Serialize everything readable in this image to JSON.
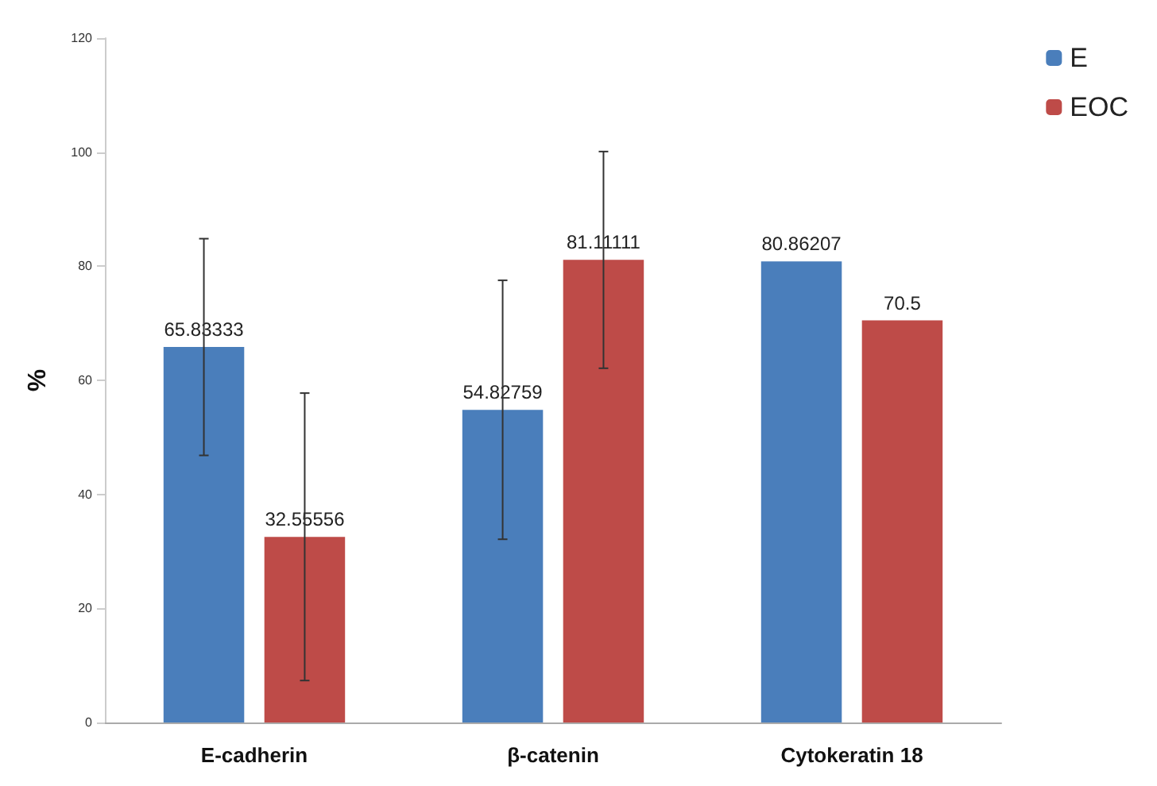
{
  "chart_data": {
    "type": "bar",
    "ylabel": "%",
    "categories": [
      "E-cadherin",
      "β-catenin",
      "Cytokeratin 18"
    ],
    "series": [
      {
        "name": "E",
        "color": "#4a7ebb",
        "values": [
          65.83333,
          54.82759,
          80.86207
        ],
        "errors": [
          19,
          22.7,
          null
        ]
      },
      {
        "name": "EOC",
        "color": "#be4b48",
        "values": [
          32.55556,
          81.11111,
          70.5
        ],
        "errors": [
          25.2,
          19,
          null
        ]
      }
    ],
    "ylim": [
      0,
      120
    ],
    "yticks": [
      0,
      20,
      40,
      60,
      80,
      100,
      120
    ],
    "grid": false,
    "legend": "top right",
    "data_labels": true
  }
}
